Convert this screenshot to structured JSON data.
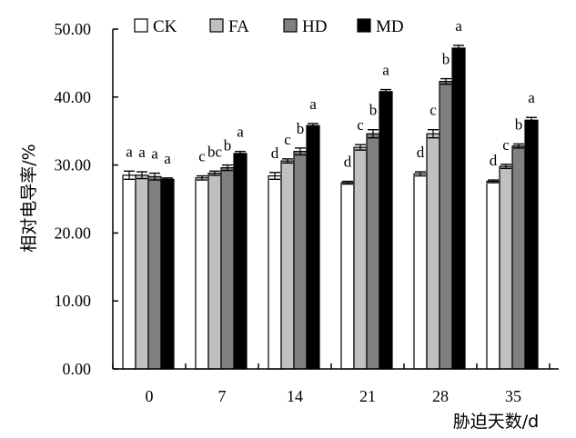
{
  "chart_data": {
    "type": "bar",
    "title": "",
    "xlabel": "胁迫天数/d",
    "ylabel": "相对电导率/%",
    "ylim": [
      0,
      50
    ],
    "yticks": [
      "0.00",
      "10.00",
      "20.00",
      "30.00",
      "40.00",
      "50.00"
    ],
    "categories": [
      "0",
      "7",
      "14",
      "21",
      "28",
      "35"
    ],
    "legend_position": "top",
    "grid": false,
    "series": [
      {
        "name": "CK",
        "color": "#ffffff",
        "values": [
          28.5,
          28.1,
          28.4,
          27.4,
          28.7,
          27.6
        ],
        "errors": [
          0.6,
          0.3,
          0.5,
          0.2,
          0.3,
          0.2
        ],
        "letters": [
          "a",
          "c",
          "d",
          "d",
          "d",
          "d"
        ]
      },
      {
        "name": "FA",
        "color": "#c0c0c0",
        "values": [
          28.5,
          28.8,
          30.6,
          32.6,
          34.6,
          29.8
        ],
        "errors": [
          0.5,
          0.3,
          0.3,
          0.4,
          0.6,
          0.3
        ],
        "letters": [
          "a",
          "bc",
          "c",
          "c",
          "c",
          "c"
        ]
      },
      {
        "name": "HD",
        "color": "#808080",
        "values": [
          28.3,
          29.6,
          32.0,
          34.6,
          42.3,
          32.8
        ],
        "errors": [
          0.5,
          0.4,
          0.5,
          0.6,
          0.4,
          0.3
        ],
        "letters": [
          "a",
          "b",
          "b",
          "b",
          "b",
          "b"
        ]
      },
      {
        "name": "MD",
        "color": "#000000",
        "values": [
          27.9,
          31.7,
          35.8,
          40.8,
          47.2,
          36.6
        ],
        "errors": [
          0.2,
          0.3,
          0.3,
          0.3,
          0.4,
          0.4
        ],
        "letters": [
          "a",
          "a",
          "a",
          "a",
          "a",
          "a"
        ]
      }
    ]
  }
}
